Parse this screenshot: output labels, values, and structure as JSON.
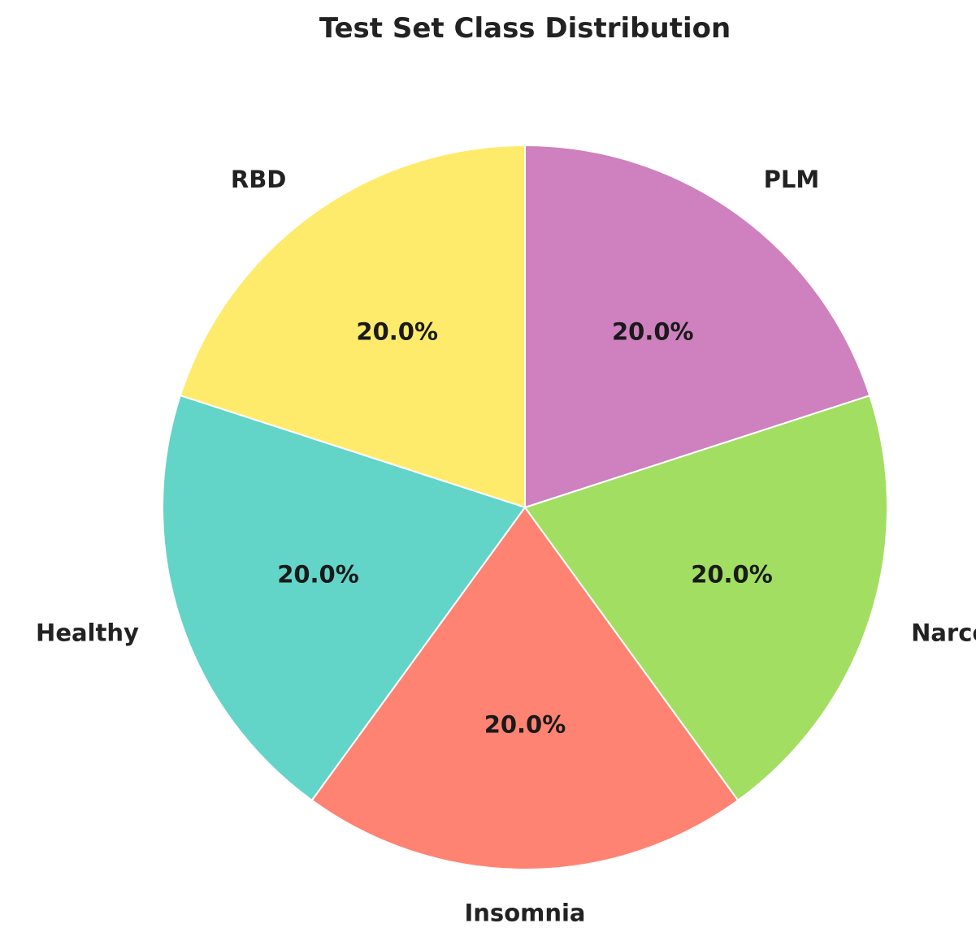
{
  "chart_data": {
    "type": "pie",
    "title": "Test Set Class Distribution",
    "categories": [
      "RBD",
      "Healthy",
      "Insomnia",
      "Narcolepsy",
      "PLM"
    ],
    "values": [
      20.0,
      20.0,
      20.0,
      20.0,
      20.0
    ],
    "percent_labels": [
      "20.0%",
      "20.0%",
      "20.0%",
      "20.0%",
      "20.0%"
    ],
    "colors": [
      "#FFEB6B",
      "#62D4C8",
      "#FF8372",
      "#A2DE62",
      "#CF80BF"
    ],
    "start_angle_deg": 90,
    "direction": "counterclockwise",
    "legend": "none"
  }
}
